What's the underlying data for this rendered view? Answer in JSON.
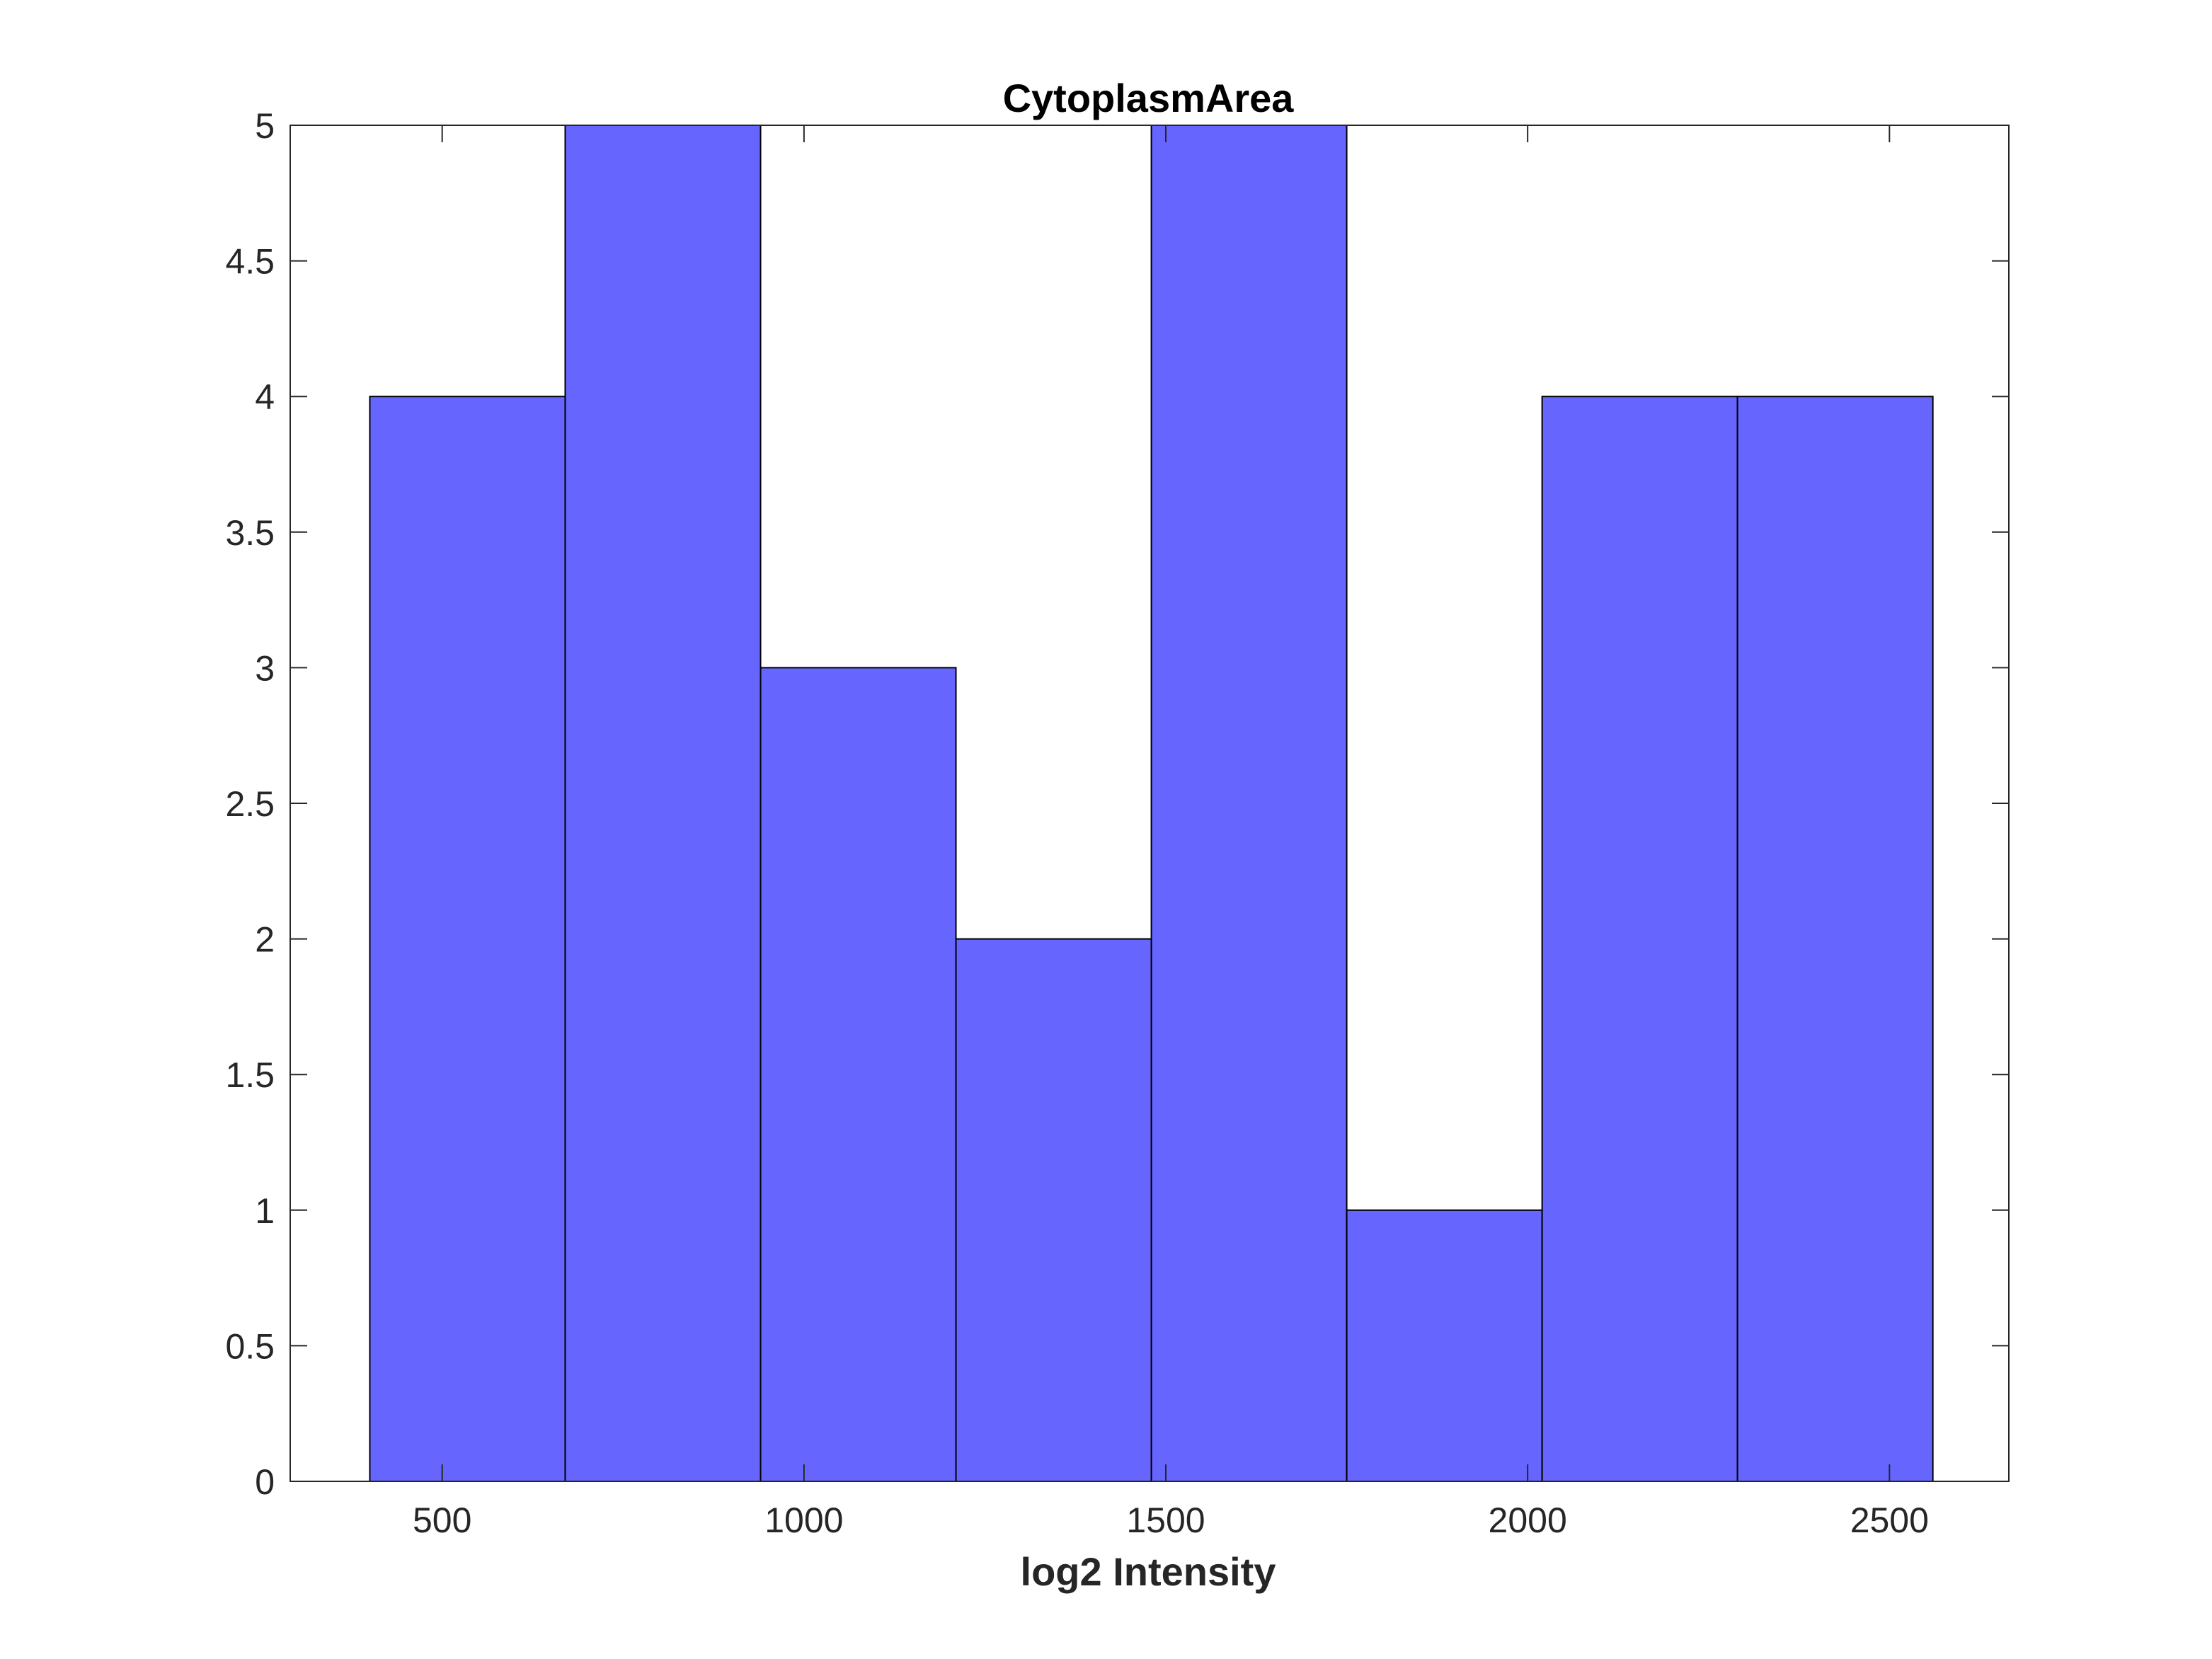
{
  "chart_data": {
    "type": "bar",
    "histogram": true,
    "title": "CytoplasmArea",
    "xlabel": "log2 Intensity",
    "ylabel": "",
    "bin_edges": [
      400,
      670,
      940,
      1210,
      1480,
      1750,
      2020,
      2290,
      2560
    ],
    "values": [
      4,
      5,
      3,
      2,
      5,
      1,
      4,
      4
    ],
    "xlim": [
      290,
      2665
    ],
    "ylim": [
      0,
      5
    ],
    "x_ticks": [
      500,
      1000,
      1500,
      2000,
      2500
    ],
    "y_ticks": [
      0,
      0.5,
      1,
      1.5,
      2,
      2.5,
      3,
      3.5,
      4,
      4.5,
      5
    ],
    "grid": false,
    "legend": "none",
    "bar_color": "#6666ff",
    "edge_color": "#000000",
    "axis_color": "#262626"
  }
}
